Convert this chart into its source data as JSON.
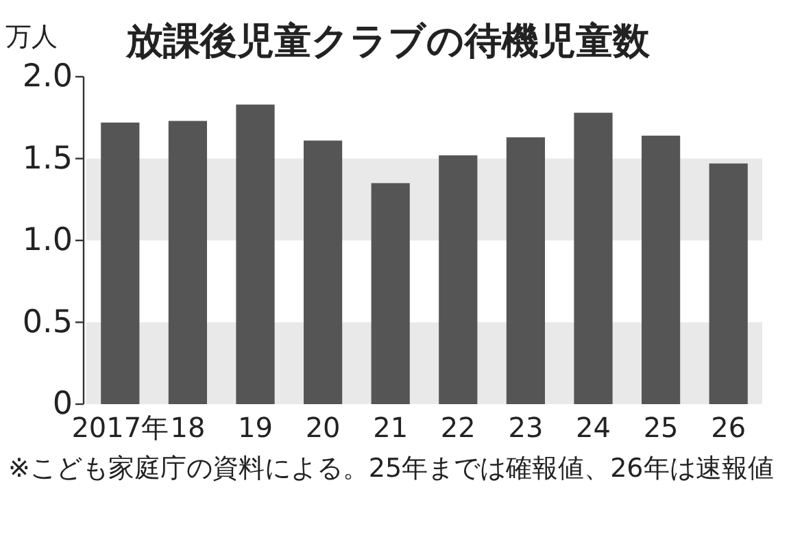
{
  "chart_data": {
    "type": "bar",
    "title": "放課後児童クラブの待機児童数",
    "ylabel": "万人",
    "categories": [
      "2017年",
      "18",
      "19",
      "20",
      "21",
      "22",
      "23",
      "24",
      "25",
      "26"
    ],
    "values": [
      1.72,
      1.73,
      1.83,
      1.61,
      1.35,
      1.52,
      1.63,
      1.78,
      1.64,
      1.47
    ],
    "color": "#555555",
    "ylim": [
      0,
      2
    ],
    "yticks": [
      0,
      0.5,
      {
        "value": 1,
        "label": "1.0"
      },
      1.5,
      {
        "value": 2,
        "label": "2.0"
      }
    ],
    "bands": [
      {
        "axis": "y",
        "from": 0,
        "to": 0.5,
        "color": "#e9e9e9"
      },
      {
        "axis": "y",
        "from": 1,
        "to": 1.5,
        "color": "#e9e9e9"
      }
    ],
    "annotations": [
      "※こども家庭庁の資料による。25年までは確報値、26年は速報値"
    ]
  }
}
